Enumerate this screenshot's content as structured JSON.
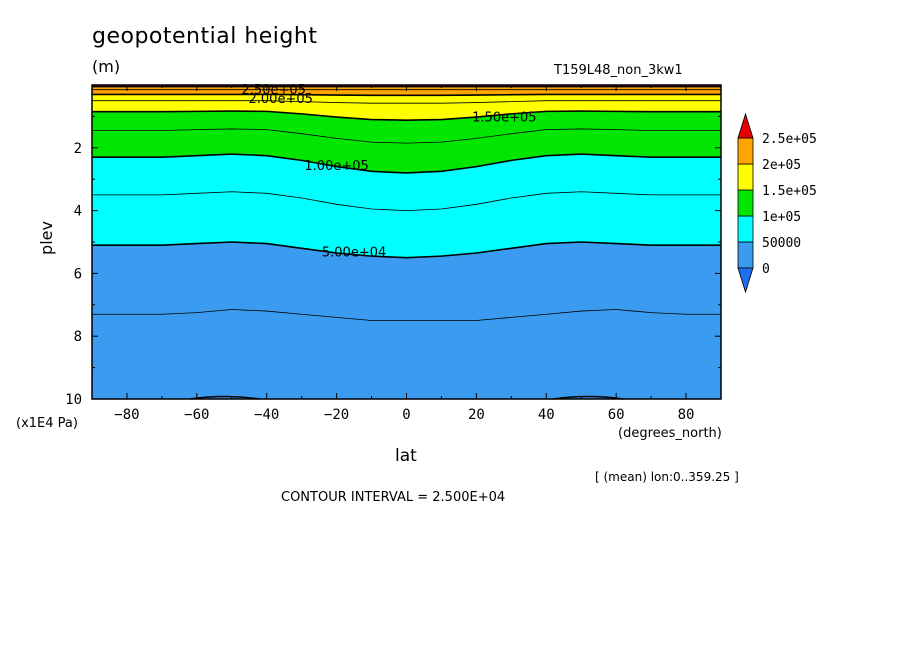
{
  "chart_data": {
    "type": "heatmap",
    "title": "geopotential height",
    "units": "(m)",
    "run_name": "T159L48_non_3kw1",
    "xlabel": "lat",
    "x_units": "(degrees_north)",
    "ylabel": "plev",
    "y_units": "(x1E4 Pa)",
    "xlim": [
      -90,
      90
    ],
    "ylim": [
      10,
      0
    ],
    "x_ticks": [
      -80,
      -60,
      -40,
      -20,
      0,
      20,
      40,
      60,
      80
    ],
    "y_ticks": [
      2,
      4,
      6,
      8,
      10
    ],
    "mean_note": "[ (mean) lon:0..359.25 ]",
    "contour_interval_text": "CONTOUR INTERVAL = 2.500E+04",
    "colorbar": {
      "levels": [
        0,
        50000,
        100000,
        150000,
        200000,
        250000
      ],
      "labels": [
        "0",
        "50000",
        "1e+05",
        "1.5e+05",
        "2e+05",
        "2.5e+05"
      ],
      "colors": [
        "#3a9bf0",
        "#00ffff",
        "#00e600",
        "#ffff00",
        "#ffa500",
        "#e60000"
      ],
      "under_color": "#1f6ff0",
      "over_color": "#e60000"
    },
    "contours": [
      {
        "level": 25000,
        "plev": [
          7.3,
          7.3,
          7.3,
          7.25,
          7.15,
          7.2,
          7.3,
          7.4,
          7.5,
          7.5,
          7.5,
          7.5,
          7.4,
          7.3,
          7.2,
          7.15,
          7.25,
          7.3,
          7.3
        ]
      },
      {
        "level": 50000,
        "plev": [
          5.1,
          5.1,
          5.1,
          5.05,
          5.0,
          5.05,
          5.2,
          5.35,
          5.45,
          5.5,
          5.45,
          5.35,
          5.2,
          5.05,
          5.0,
          5.05,
          5.1,
          5.1,
          5.1
        ],
        "label": "5.00e+04"
      },
      {
        "level": 75000,
        "plev": [
          3.5,
          3.5,
          3.5,
          3.45,
          3.4,
          3.45,
          3.6,
          3.8,
          3.95,
          4.0,
          3.95,
          3.8,
          3.6,
          3.45,
          3.4,
          3.45,
          3.5,
          3.5,
          3.5
        ]
      },
      {
        "level": 100000,
        "plev": [
          2.3,
          2.3,
          2.3,
          2.25,
          2.2,
          2.25,
          2.4,
          2.6,
          2.75,
          2.8,
          2.75,
          2.6,
          2.4,
          2.25,
          2.2,
          2.25,
          2.3,
          2.3,
          2.3
        ],
        "label": "1.00e+05"
      },
      {
        "level": 125000,
        "plev": [
          1.45,
          1.45,
          1.45,
          1.42,
          1.4,
          1.42,
          1.55,
          1.7,
          1.82,
          1.85,
          1.82,
          1.7,
          1.55,
          1.42,
          1.4,
          1.42,
          1.45,
          1.45,
          1.45
        ]
      },
      {
        "level": 150000,
        "plev": [
          0.85,
          0.85,
          0.85,
          0.84,
          0.83,
          0.84,
          0.92,
          1.02,
          1.1,
          1.12,
          1.1,
          1.02,
          0.92,
          0.84,
          0.83,
          0.84,
          0.85,
          0.85,
          0.85
        ],
        "label": "1.50e+05"
      },
      {
        "level": 175000,
        "plev": [
          0.5,
          0.5,
          0.5,
          0.5,
          0.5,
          0.5,
          0.53,
          0.56,
          0.58,
          0.58,
          0.58,
          0.56,
          0.53,
          0.5,
          0.5,
          0.5,
          0.5,
          0.5,
          0.5
        ]
      },
      {
        "level": 200000,
        "plev": [
          0.3,
          0.3,
          0.3,
          0.3,
          0.3,
          0.3,
          0.31,
          0.32,
          0.33,
          0.33,
          0.33,
          0.32,
          0.31,
          0.3,
          0.3,
          0.3,
          0.3,
          0.3,
          0.3
        ],
        "label": "2.00e+05"
      },
      {
        "level": 225000,
        "plev": [
          0.15,
          0.15,
          0.15,
          0.15,
          0.15,
          0.15,
          0.15,
          0.15,
          0.15,
          0.15,
          0.15,
          0.15,
          0.15,
          0.15,
          0.15,
          0.15,
          0.15,
          0.15,
          0.15
        ]
      },
      {
        "level": 250000,
        "plev": [
          0.05,
          0.05,
          0.05,
          0.05,
          0.05,
          0.05,
          0.05,
          0.05,
          0.05,
          0.05,
          0.05,
          0.05,
          0.05,
          0.05,
          0.05,
          0.05,
          0.05,
          0.05,
          0.05
        ],
        "label": "2.50e+05"
      }
    ],
    "contour_lat": [
      -90,
      -80,
      -70,
      -60,
      -50,
      -40,
      -30,
      -20,
      -10,
      0,
      10,
      20,
      30,
      40,
      50,
      60,
      70,
      80,
      90
    ]
  }
}
